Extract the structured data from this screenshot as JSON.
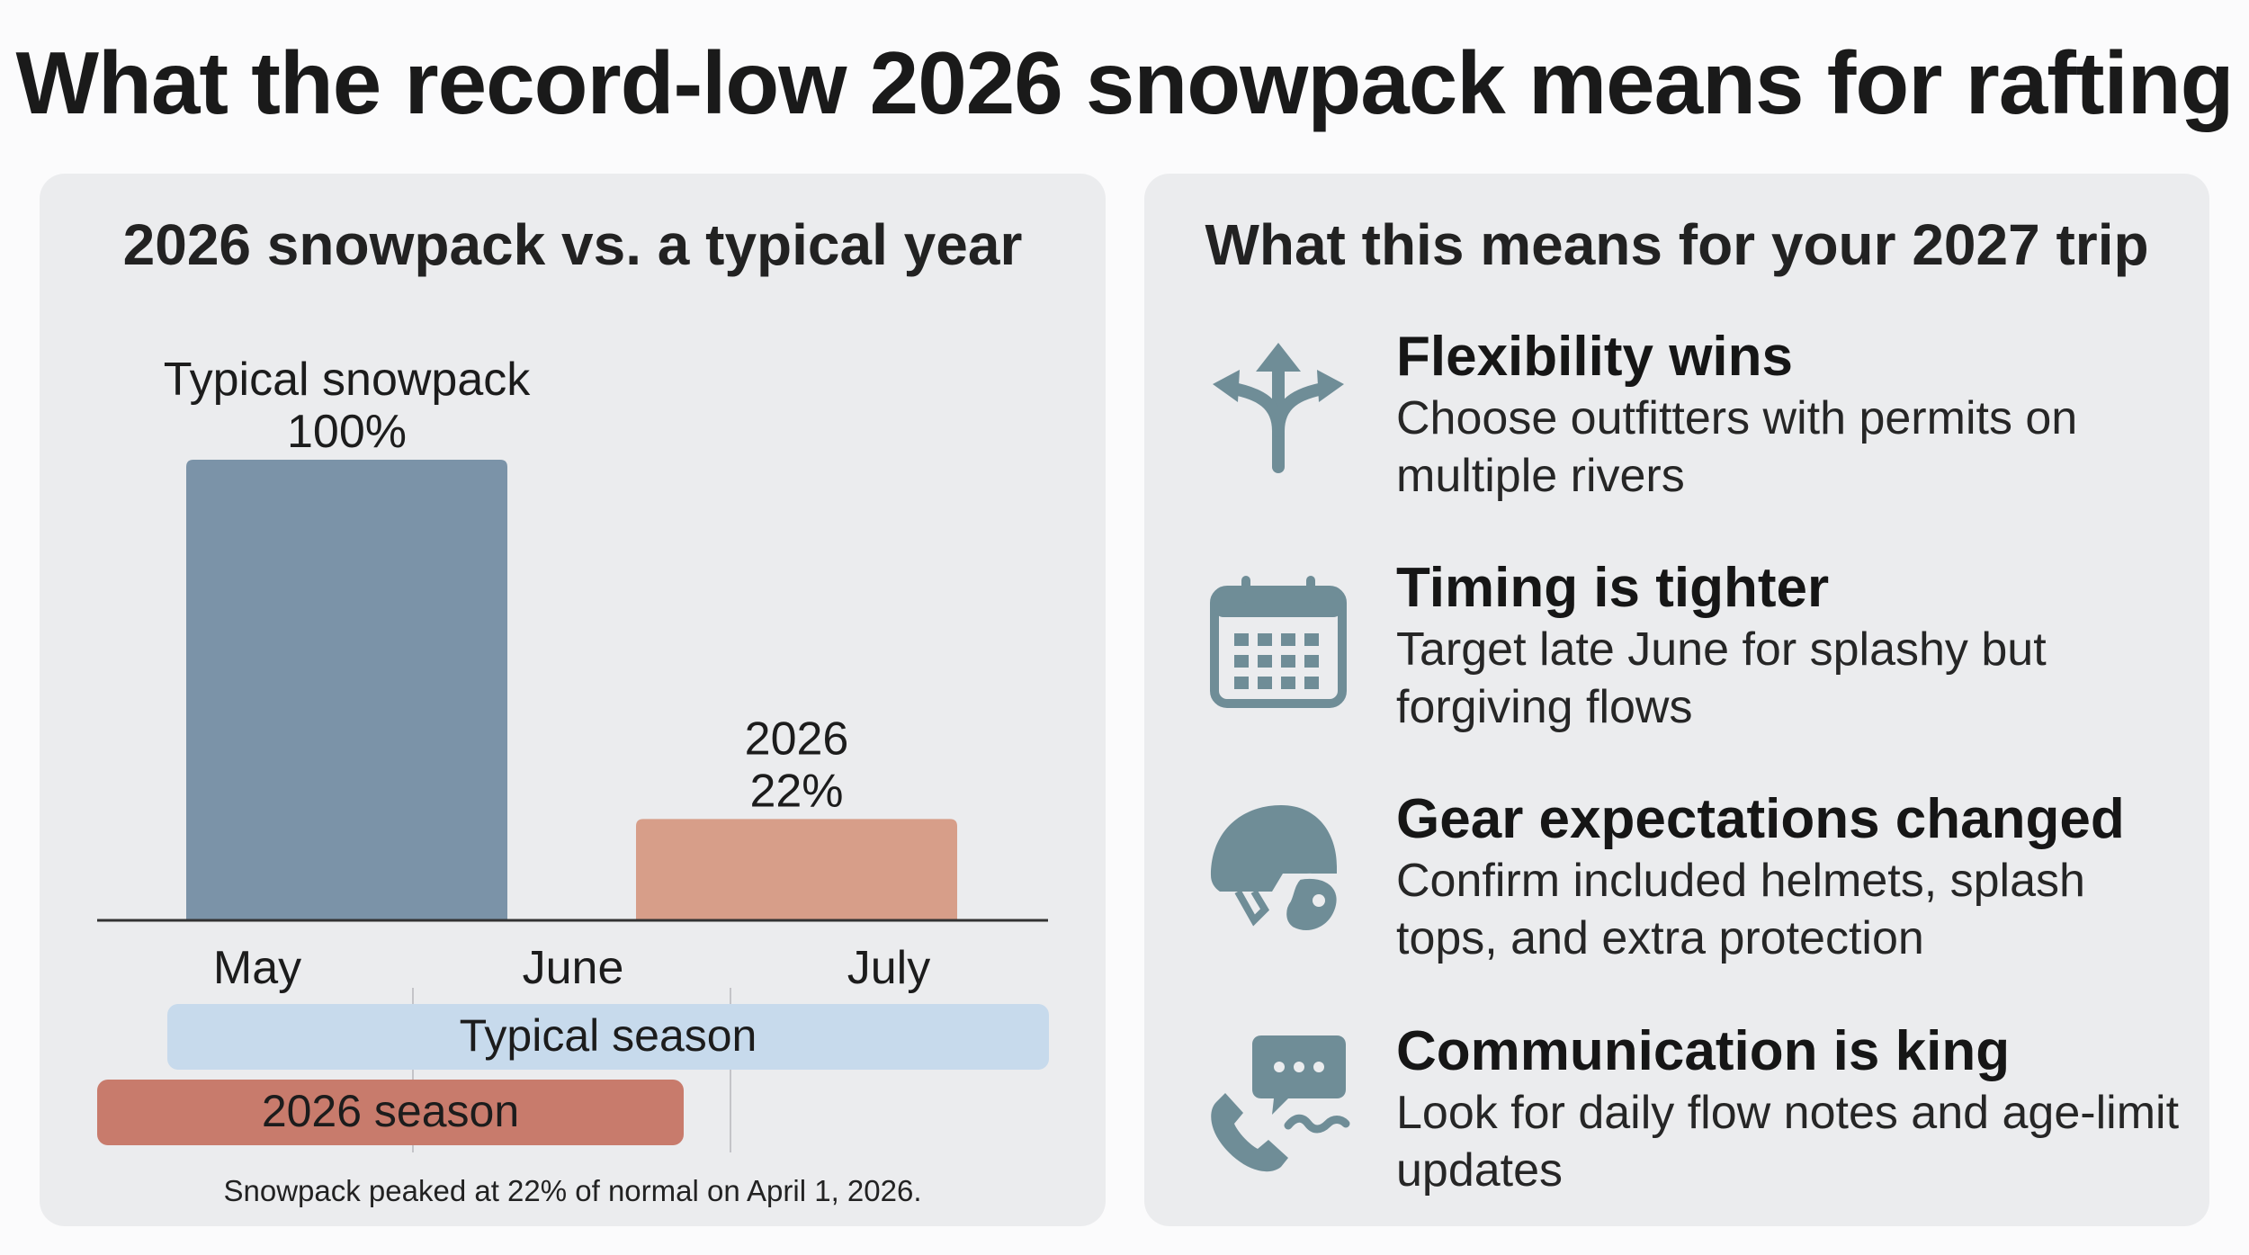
{
  "title": "What the record-low 2026 snowpack means for rafting",
  "left_panel": {
    "title": "2026 snowpack vs. a typical year",
    "note": "Snowpack peaked at 22% of normal on April 1, 2026."
  },
  "right_panel": {
    "title": "What this means for your 2027 trip",
    "items": [
      {
        "icon": "split-arrows-icon",
        "heading": "Flexibility wins",
        "body": "Choose outfitters with permits on multiple rivers"
      },
      {
        "icon": "calendar-icon",
        "heading": "Timing is tighter",
        "body": "Target late June for splashy but forgiving flows"
      },
      {
        "icon": "helmet-icon",
        "heading": "Gear expectations changed",
        "body": "Confirm included helmets, splash tops, and extra protection"
      },
      {
        "icon": "phone-chat-icon",
        "heading": "Communication is king",
        "body": "Look for daily flow notes and age-limit updates"
      }
    ]
  },
  "colors": {
    "typical_bar": "#7b93a8",
    "bar_2026": "#d79e89",
    "typical_season": "#c7daec",
    "season_2026": "#c87b6c",
    "icon": "#6f8d97",
    "panel_bg": "#ebecee"
  },
  "chart_data": {
    "type": "bar",
    "title": "2026 snowpack vs. a typical year",
    "xlabel": "",
    "ylabel": "",
    "ylim": [
      0,
      100
    ],
    "categories": [
      "Typical snowpack",
      "2026"
    ],
    "values": [
      100,
      22
    ],
    "data_labels": [
      "100%",
      "22%"
    ],
    "months": [
      "May",
      "June",
      "July"
    ],
    "seasons": [
      {
        "name": "Typical season",
        "start": "mid-May",
        "end": "end of July"
      },
      {
        "name": "2026 season",
        "start": "early May",
        "end": "late June"
      }
    ]
  }
}
